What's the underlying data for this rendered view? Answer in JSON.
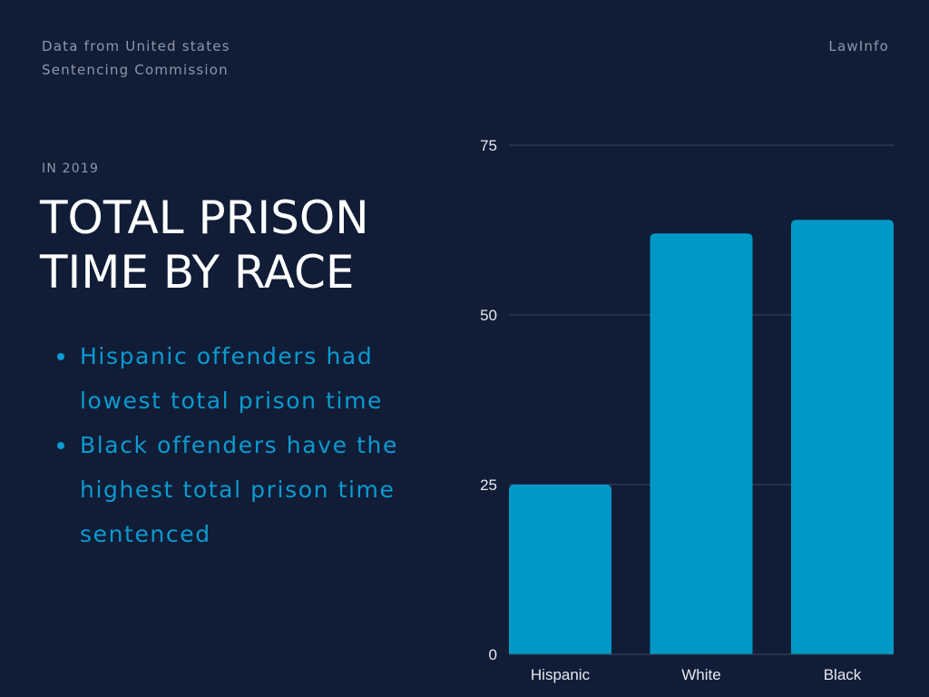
{
  "header": {
    "source_line1": "Data from United states",
    "source_line2": "Sentencing Commission",
    "brand": "LawInfo"
  },
  "eyebrow": "IN 2019",
  "title": {
    "line1": "TOTAL PRISON",
    "line2": "TIME BY RACE"
  },
  "bullets": [
    "Hispanic offenders had lowest total prison time",
    "Black offenders have the highest total prison time sentenced"
  ],
  "colors": {
    "background": "#111d37",
    "bar": "#0099c6",
    "accent_text": "#0b9ad0",
    "gridline": "#3a4660"
  },
  "chart_data": {
    "type": "bar",
    "categories": [
      "Hispanic",
      "White",
      "Black"
    ],
    "values": [
      25,
      62,
      64
    ],
    "ylim": [
      0,
      75
    ],
    "yticks": [
      0,
      25,
      50,
      75
    ],
    "title": "",
    "xlabel": "",
    "ylabel": "",
    "grid": true
  }
}
